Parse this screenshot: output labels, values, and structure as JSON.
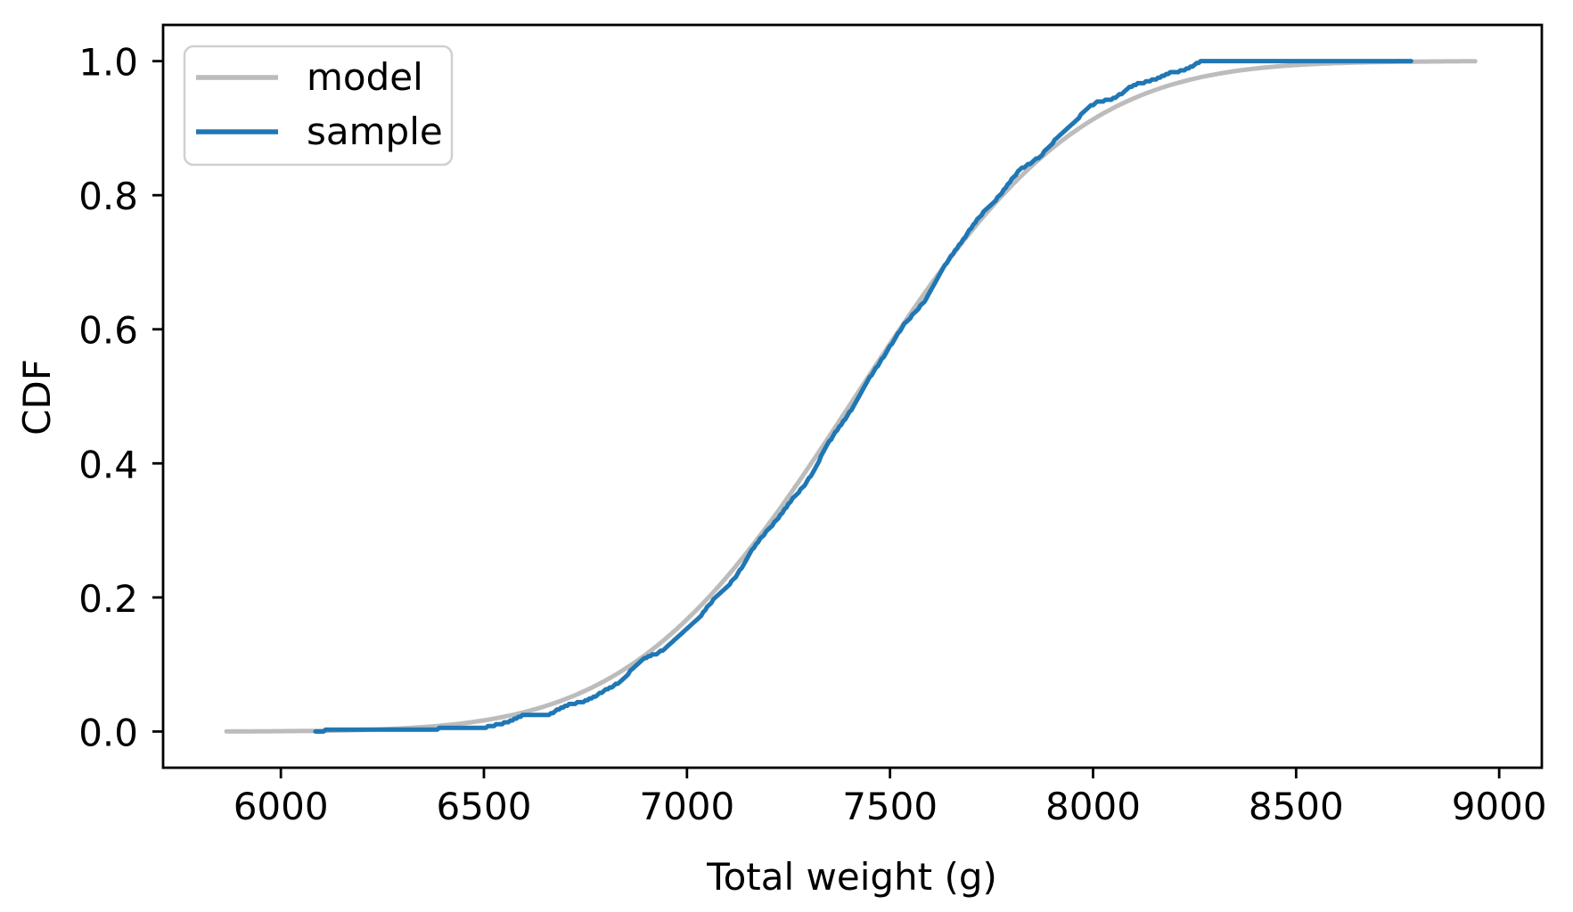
{
  "chart_data": {
    "type": "line",
    "title": "",
    "xlabel": "Total weight (g)",
    "ylabel": "CDF",
    "xlim": [
      5710,
      9105
    ],
    "ylim": [
      -0.054,
      1.054
    ],
    "x_ticks": [
      6000,
      6500,
      7000,
      7500,
      8000,
      8500,
      9000
    ],
    "x_tick_labels": [
      "6000",
      "6500",
      "7000",
      "7500",
      "8000",
      "8500",
      "9000"
    ],
    "y_ticks": [
      0.0,
      0.2,
      0.4,
      0.6,
      0.8,
      1.0
    ],
    "y_tick_labels": [
      "0.0",
      "0.2",
      "0.4",
      "0.6",
      "0.8",
      "1.0"
    ],
    "grid": false,
    "background": "#ffffff",
    "axis_color": "#000000",
    "legend": {
      "position": "upper left",
      "border_color": "#d0d0d0",
      "entries": [
        {
          "label": "model",
          "color": "#bcbcbc"
        },
        {
          "label": "sample",
          "color": "#1f77b4"
        }
      ]
    },
    "series": [
      {
        "name": "model",
        "curve": "normal_cdf",
        "mu": 7415,
        "sigma": 430,
        "x_min": 5866,
        "x_max": 8955,
        "color": "#bcbcbc",
        "linewidth": 5,
        "points": [
          [
            5866,
            0.0002
          ],
          [
            6000,
            0.0005
          ],
          [
            6500,
            0.017
          ],
          [
            7000,
            0.167
          ],
          [
            7053,
            0.2
          ],
          [
            7415,
            0.5
          ],
          [
            7777,
            0.8
          ],
          [
            8000,
            0.913
          ],
          [
            8200,
            0.966
          ],
          [
            8500,
            0.994
          ],
          [
            8955,
            0.9997
          ]
        ]
      },
      {
        "name": "sample",
        "curve": "empirical_cdf",
        "n": 365,
        "mu": 7415,
        "sigma": 430,
        "x_min": 6085,
        "x_max": 8783,
        "color": "#1f77b4",
        "linewidth": 5,
        "wiggle": {
          "a1": -0.016,
          "phase1": 0.05,
          "a2": -0.004,
          "hf": [
            0.0035,
            0.0025,
            0.002
          ]
        },
        "points": [
          [
            6085,
            0.003
          ],
          [
            6500,
            0.012
          ],
          [
            7000,
            0.155
          ],
          [
            7085,
            0.2
          ],
          [
            7414,
            0.5
          ],
          [
            7764,
            0.8
          ],
          [
            8000,
            0.92
          ],
          [
            8200,
            0.977
          ],
          [
            8470,
            0.997
          ],
          [
            8783,
            1.0
          ]
        ]
      }
    ]
  }
}
